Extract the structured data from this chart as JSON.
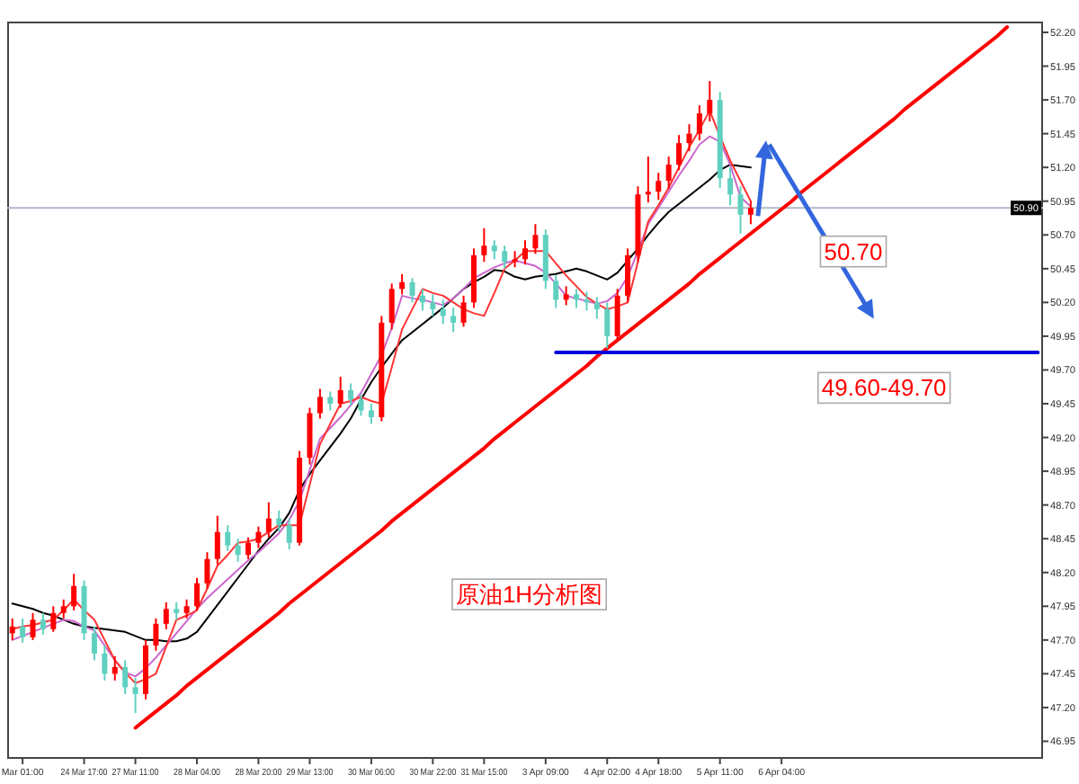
{
  "chart_data": {
    "type": "candlestick",
    "categories": [
      null,
      "Mar 01:00",
      null,
      null,
      null,
      null,
      null,
      "24 Mar 17:00",
      null,
      null,
      null,
      null,
      "27 Mar 11:00",
      null,
      null,
      null,
      null,
      null,
      "28 Mar 04:00",
      null,
      null,
      null,
      null,
      null,
      "28 Mar 20:00",
      null,
      null,
      null,
      null,
      "29 Mar 13:00",
      null,
      null,
      null,
      null,
      null,
      "30 Mar 06:00",
      null,
      null,
      null,
      null,
      null,
      "30 Mar 22:00",
      null,
      null,
      null,
      null,
      "31 Mar 15:00",
      null,
      null,
      null,
      null,
      null,
      "3 Apr 09:00",
      null,
      null,
      null,
      null,
      null,
      "4 Apr 02:00",
      null,
      null,
      null,
      null,
      "4 Apr 18:00",
      null,
      null,
      null,
      null,
      null,
      "5 Apr 11:00",
      null,
      null,
      null,
      null,
      null,
      "6 Apr 04:00",
      null,
      null,
      null,
      null,
      null,
      null,
      null,
      null,
      null,
      null,
      null,
      null,
      null,
      null,
      null,
      null,
      null,
      null,
      null,
      null,
      null,
      null,
      null,
      null,
      null
    ],
    "ohlc": [
      [
        47.75,
        47.86,
        47.7,
        47.8
      ],
      [
        47.8,
        47.86,
        47.68,
        47.72
      ],
      [
        47.72,
        47.9,
        47.7,
        47.85
      ],
      [
        47.85,
        47.9,
        47.74,
        47.78
      ],
      [
        47.78,
        47.95,
        47.76,
        47.9
      ],
      [
        47.9,
        48.0,
        47.86,
        47.95
      ],
      [
        47.95,
        48.19,
        47.92,
        48.1
      ],
      [
        48.1,
        48.14,
        47.7,
        47.75
      ],
      [
        47.75,
        47.8,
        47.55,
        47.6
      ],
      [
        47.6,
        47.66,
        47.4,
        47.45
      ],
      [
        47.45,
        47.58,
        47.4,
        47.5
      ],
      [
        47.5,
        47.55,
        47.3,
        47.35
      ],
      [
        47.35,
        47.42,
        47.16,
        47.3
      ],
      [
        47.3,
        47.7,
        47.26,
        47.66
      ],
      [
        47.66,
        47.86,
        47.62,
        47.82
      ],
      [
        47.82,
        47.98,
        47.78,
        47.93
      ],
      [
        47.93,
        47.98,
        47.85,
        47.9
      ],
      [
        47.9,
        48.0,
        47.86,
        47.95
      ],
      [
        47.95,
        48.16,
        47.92,
        48.12
      ],
      [
        48.12,
        48.35,
        48.08,
        48.3
      ],
      [
        48.3,
        48.62,
        48.26,
        48.5
      ],
      [
        48.5,
        48.55,
        48.36,
        48.4
      ],
      [
        48.4,
        48.45,
        48.28,
        48.33
      ],
      [
        48.33,
        48.46,
        48.3,
        48.42
      ],
      [
        48.42,
        48.54,
        48.38,
        48.5
      ],
      [
        48.5,
        48.72,
        48.46,
        48.6
      ],
      [
        48.6,
        48.66,
        48.5,
        48.55
      ],
      [
        48.55,
        48.6,
        48.37,
        48.42
      ],
      [
        48.42,
        49.1,
        48.4,
        49.05
      ],
      [
        49.05,
        49.42,
        49.0,
        49.38
      ],
      [
        49.38,
        49.56,
        49.34,
        49.5
      ],
      [
        49.5,
        49.54,
        49.4,
        49.45
      ],
      [
        49.45,
        49.65,
        49.42,
        49.55
      ],
      [
        49.55,
        49.6,
        49.44,
        49.48
      ],
      [
        49.48,
        49.52,
        49.36,
        49.4
      ],
      [
        49.4,
        49.45,
        49.3,
        49.35
      ],
      [
        49.35,
        50.1,
        49.32,
        50.05
      ],
      [
        50.05,
        50.34,
        50.0,
        50.3
      ],
      [
        50.3,
        50.41,
        50.26,
        50.35
      ],
      [
        50.35,
        50.38,
        50.2,
        50.25
      ],
      [
        50.25,
        50.3,
        50.14,
        50.2
      ],
      [
        50.2,
        50.26,
        50.1,
        50.15
      ],
      [
        50.15,
        50.22,
        50.04,
        50.1
      ],
      [
        50.1,
        50.16,
        49.98,
        50.05
      ],
      [
        50.05,
        50.25,
        50.02,
        50.2
      ],
      [
        50.2,
        50.6,
        50.16,
        50.55
      ],
      [
        50.55,
        50.75,
        50.5,
        50.62
      ],
      [
        50.62,
        50.66,
        50.52,
        50.58
      ],
      [
        50.58,
        50.62,
        50.45,
        50.5
      ],
      [
        50.5,
        50.58,
        50.46,
        50.52
      ],
      [
        50.52,
        50.66,
        50.48,
        50.6
      ],
      [
        50.6,
        50.78,
        50.56,
        50.7
      ],
      [
        50.7,
        50.74,
        50.3,
        50.36
      ],
      [
        50.36,
        50.4,
        50.16,
        50.22
      ],
      [
        50.22,
        50.32,
        50.18,
        50.26
      ],
      [
        50.26,
        50.3,
        50.16,
        50.22
      ],
      [
        50.22,
        50.28,
        50.14,
        50.2
      ],
      [
        50.2,
        50.24,
        50.08,
        50.15
      ],
      [
        50.15,
        50.2,
        49.86,
        49.95
      ],
      [
        49.95,
        50.3,
        49.92,
        50.25
      ],
      [
        50.25,
        50.6,
        50.2,
        50.55
      ],
      [
        50.55,
        51.06,
        50.5,
        51.0
      ],
      [
        51.0,
        51.28,
        50.94,
        51.02
      ],
      [
        51.02,
        51.16,
        50.96,
        51.1
      ],
      [
        51.1,
        51.28,
        51.04,
        51.22
      ],
      [
        51.22,
        51.44,
        51.18,
        51.38
      ],
      [
        51.38,
        51.52,
        51.32,
        51.45
      ],
      [
        51.45,
        51.66,
        51.4,
        51.6
      ],
      [
        51.6,
        51.84,
        51.54,
        51.7
      ],
      [
        51.7,
        51.76,
        51.05,
        51.12
      ],
      [
        51.12,
        51.2,
        50.92,
        51.0
      ],
      [
        51.0,
        51.06,
        50.71,
        50.85
      ],
      [
        50.85,
        50.95,
        50.78,
        50.9
      ],
      null,
      null,
      null,
      null,
      null,
      null,
      null,
      null,
      null,
      null,
      null,
      null,
      null,
      null,
      null,
      null,
      null,
      null,
      null,
      null,
      null,
      null,
      null,
      null,
      null,
      null,
      null,
      null
    ],
    "colors": [
      "#ff0000",
      "#5fd0c0",
      "#ff0000",
      "#5fd0c0",
      "#ff0000",
      "#ff0000",
      "#ff0000",
      "#5fd0c0",
      "#5fd0c0",
      "#5fd0c0",
      "#ff0000",
      "#5fd0c0",
      "#5fd0c0",
      "#ff0000",
      "#ff0000",
      "#ff0000",
      "#5fd0c0",
      "#ff0000",
      "#ff0000",
      "#ff0000",
      "#ff0000",
      "#5fd0c0",
      "#5fd0c0",
      "#ff0000",
      "#ff0000",
      "#ff0000",
      "#5fd0c0",
      "#5fd0c0",
      "#ff0000",
      "#ff0000",
      "#ff0000",
      "#5fd0c0",
      "#ff0000",
      "#5fd0c0",
      "#5fd0c0",
      "#5fd0c0",
      "#ff0000",
      "#ff0000",
      "#ff0000",
      "#5fd0c0",
      "#5fd0c0",
      "#5fd0c0",
      "#5fd0c0",
      "#5fd0c0",
      "#ff0000",
      "#ff0000",
      "#ff0000",
      "#5fd0c0",
      "#5fd0c0",
      "#ff0000",
      "#ff0000",
      "#ff0000",
      "#5fd0c0",
      "#5fd0c0",
      "#ff0000",
      "#5fd0c0",
      "#5fd0c0",
      "#5fd0c0",
      "#5fd0c0",
      "#ff0000",
      "#ff0000",
      "#ff0000",
      "#ff0000",
      "#ff0000",
      "#ff0000",
      "#ff0000",
      "#ff0000",
      "#ff0000",
      "#ff0000",
      "#5fd0c0",
      "#5fd0c0",
      "#5fd0c0",
      "#ff0000",
      null,
      null,
      null,
      null,
      null,
      null,
      null,
      null,
      null,
      null,
      null,
      null,
      null,
      null,
      null,
      null,
      null,
      null,
      null,
      null,
      null,
      null,
      null,
      null,
      null,
      null,
      null,
      null
    ],
    "series": [
      {
        "type": "line",
        "color": "#000000",
        "values": [
          47.97,
          47.95,
          47.93,
          47.9,
          47.88,
          47.85,
          47.82,
          47.8,
          47.79,
          47.78,
          47.77,
          47.76,
          47.73,
          47.7,
          47.7,
          47.69,
          47.69,
          47.71,
          47.76,
          47.86,
          47.96,
          48.06,
          48.16,
          48.26,
          48.36,
          48.45,
          48.53,
          48.64,
          48.81,
          48.93,
          49.03,
          49.13,
          49.23,
          49.34,
          49.48,
          49.61,
          49.72,
          49.82,
          49.92,
          49.98,
          50.04,
          50.1,
          50.16,
          50.23,
          50.3,
          50.35,
          50.39,
          50.44,
          50.43,
          50.39,
          50.37,
          50.39,
          50.4,
          50.41,
          50.43,
          50.45,
          50.43,
          50.4,
          50.37,
          50.42,
          50.51,
          50.6,
          50.7,
          50.79,
          50.87,
          50.93,
          50.99,
          51.05,
          51.11,
          51.18,
          51.22,
          51.21,
          51.2,
          null,
          null,
          null,
          null,
          null,
          null,
          null,
          null,
          null,
          null,
          null,
          null,
          null,
          null,
          null,
          null,
          null,
          null,
          null,
          null,
          null,
          null,
          null,
          null,
          null,
          null,
          null,
          null
        ]
      },
      {
        "type": "line",
        "color": "#cc66cc",
        "values": [
          47.7,
          47.73,
          47.76,
          47.79,
          47.82,
          47.85,
          47.84,
          47.8,
          47.77,
          47.66,
          47.55,
          47.46,
          47.43,
          47.49,
          47.57,
          47.66,
          47.75,
          47.84,
          47.93,
          48.01,
          48.08,
          48.15,
          48.22,
          48.29,
          48.35,
          48.42,
          48.49,
          48.59,
          48.73,
          48.96,
          49.19,
          49.27,
          49.35,
          49.44,
          49.53,
          49.67,
          49.81,
          50.01,
          50.25,
          50.23,
          50.22,
          50.2,
          50.18,
          50.23,
          50.3,
          50.38,
          50.42,
          50.46,
          50.49,
          50.51,
          50.49,
          50.47,
          50.42,
          50.34,
          50.25,
          50.23,
          50.21,
          50.19,
          50.21,
          50.27,
          50.39,
          50.58,
          50.78,
          50.9,
          51.02,
          51.14,
          51.25,
          51.37,
          51.43,
          51.39,
          51.22,
          50.98,
          50.91,
          null,
          null,
          null,
          null,
          null,
          null,
          null,
          null,
          null,
          null,
          null,
          null,
          null,
          null,
          null,
          null,
          null,
          null,
          null,
          null,
          null,
          null,
          null,
          null,
          null,
          null,
          null,
          null
        ]
      },
      {
        "type": "line",
        "color": "#ff3333",
        "values": [
          47.78,
          47.8,
          47.81,
          47.83,
          47.85,
          47.92,
          48.0,
          47.92,
          47.85,
          47.7,
          47.55,
          47.46,
          47.38,
          47.41,
          47.45,
          47.65,
          47.85,
          47.88,
          47.92,
          48.08,
          48.25,
          48.33,
          48.42,
          48.43,
          48.45,
          48.5,
          48.55,
          48.55,
          48.55,
          48.85,
          49.15,
          49.3,
          49.45,
          49.47,
          49.5,
          49.47,
          49.45,
          49.72,
          50.0,
          50.15,
          50.3,
          50.27,
          50.25,
          50.2,
          50.15,
          50.12,
          50.1,
          50.27,
          50.45,
          50.51,
          50.58,
          50.58,
          50.58,
          50.49,
          50.4,
          50.32,
          50.24,
          50.19,
          50.15,
          50.17,
          50.2,
          50.5,
          50.8,
          50.92,
          51.05,
          51.2,
          51.35,
          51.48,
          51.62,
          51.43,
          51.25,
          51.1,
          50.95,
          null,
          null,
          null,
          null,
          null,
          null,
          null,
          null,
          null,
          null,
          null,
          null,
          null,
          null,
          null,
          null,
          null,
          null,
          null,
          null,
          null,
          null,
          null,
          null,
          null,
          null,
          null,
          null
        ]
      },
      {
        "type": "line",
        "color": "#ff0000",
        "values": [
          null,
          null,
          null,
          null,
          null,
          null,
          null,
          null,
          null,
          null,
          null,
          null,
          47.05,
          47.11,
          47.17,
          47.23,
          47.29,
          47.36,
          47.42,
          47.48,
          47.54,
          47.6,
          47.66,
          47.72,
          47.78,
          47.84,
          47.9,
          47.97,
          48.03,
          48.09,
          48.15,
          48.21,
          48.27,
          48.33,
          48.39,
          48.45,
          48.51,
          48.58,
          48.64,
          48.7,
          48.76,
          48.82,
          48.88,
          48.94,
          49.0,
          49.06,
          49.12,
          49.19,
          49.25,
          49.31,
          49.37,
          49.43,
          49.49,
          49.55,
          49.61,
          49.67,
          49.73,
          49.8,
          49.86,
          49.92,
          49.98,
          50.04,
          50.1,
          50.16,
          50.22,
          50.28,
          50.34,
          50.41,
          50.47,
          50.53,
          50.59,
          50.65,
          50.71,
          50.77,
          50.83,
          50.89,
          50.95,
          51.02,
          51.08,
          51.14,
          51.2,
          51.26,
          51.32,
          51.38,
          51.44,
          51.5,
          51.56,
          51.63,
          51.69,
          51.75,
          51.81,
          51.87,
          51.93,
          51.99,
          52.05,
          52.11,
          52.17,
          52.24,
          null,
          null,
          null
        ]
      },
      {
        "type": "line",
        "color": "#0000dd",
        "values": [
          null,
          null,
          null,
          null,
          null,
          null,
          null,
          null,
          null,
          null,
          null,
          null,
          null,
          null,
          null,
          null,
          null,
          null,
          null,
          null,
          null,
          null,
          null,
          null,
          null,
          null,
          null,
          null,
          null,
          null,
          null,
          null,
          null,
          null,
          null,
          null,
          null,
          null,
          null,
          null,
          null,
          null,
          null,
          null,
          null,
          null,
          null,
          null,
          null,
          null,
          null,
          null,
          null,
          49.83,
          49.83,
          49.83,
          49.83,
          49.83,
          49.83,
          49.83,
          49.83,
          49.83,
          49.83,
          49.83,
          49.83,
          49.83,
          49.83,
          49.83,
          49.83,
          49.83,
          49.83,
          49.83,
          49.83,
          49.83,
          49.83,
          49.83,
          49.83,
          49.83,
          49.83,
          49.83,
          49.83,
          49.83,
          49.83,
          49.83,
          49.83,
          49.83,
          49.83,
          49.83,
          49.83,
          49.83,
          49.83,
          49.83,
          49.83,
          49.83,
          49.83,
          49.83,
          49.83,
          49.83,
          49.83,
          49.83,
          49.83
        ]
      }
    ],
    "ref_lines": [
      {
        "axis": "y",
        "value": 50.9,
        "label": "50.90",
        "color": "#b0b8c8"
      }
    ],
    "ylim": [
      46.82,
      52.28
    ],
    "yticks": [
      {
        "value": 46.95,
        "label": "46.95"
      },
      {
        "value": 47.2,
        "label": "47.20"
      },
      {
        "value": 47.45,
        "label": "47.45"
      },
      {
        "value": 47.7,
        "label": "47.70"
      },
      {
        "value": 47.95,
        "label": "47.95"
      },
      {
        "value": 48.2,
        "label": "48.20"
      },
      {
        "value": 48.45,
        "label": "48.45"
      },
      {
        "value": 48.7,
        "label": "48.70"
      },
      {
        "value": 48.95,
        "label": "48.95"
      },
      {
        "value": 49.2,
        "label": "49.20"
      },
      {
        "value": 49.45,
        "label": "49.45"
      },
      {
        "value": 49.7,
        "label": "49.70"
      },
      {
        "value": 49.95,
        "label": "49.95"
      },
      {
        "value": 50.2,
        "label": "50.20"
      },
      {
        "value": 50.45,
        "label": "50.45"
      },
      {
        "value": 50.7,
        "label": "50.70"
      },
      {
        "value": 50.95,
        "label": "50.95"
      },
      {
        "value": 51.2,
        "label": "51.20"
      },
      {
        "value": 51.45,
        "label": "51.45"
      },
      {
        "value": 51.7,
        "label": "51.70"
      },
      {
        "value": 51.95,
        "label": "51.95"
      },
      {
        "value": 52.2,
        "label": "52.20"
      }
    ],
    "annotations": [
      "原油1H分析图",
      "50.70",
      "49.60-49.70"
    ]
  }
}
